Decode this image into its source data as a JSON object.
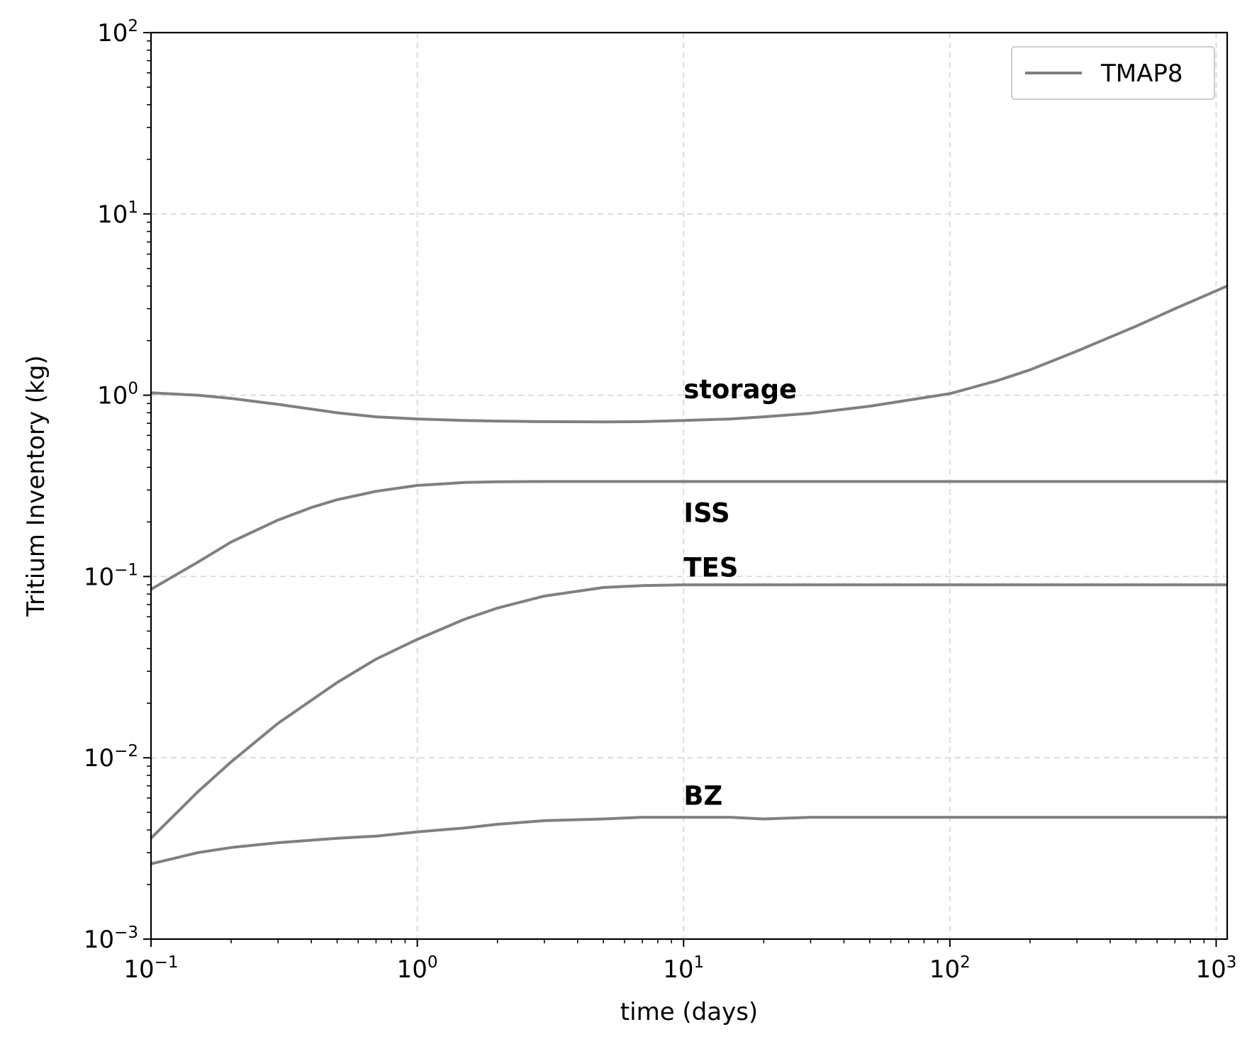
{
  "chart_data": {
    "type": "line",
    "xscale": "log",
    "yscale": "log",
    "xlabel": "time (days)",
    "ylabel": "Tritium Inventory (kg)",
    "xlim": [
      0.1,
      1100
    ],
    "ylim": [
      0.001,
      100
    ],
    "grid": true,
    "legend": {
      "placement": "top-right",
      "entries": [
        "TMAP8"
      ]
    },
    "line_color": "#808080",
    "x_ticks": [
      {
        "value": 0.1,
        "base": "10",
        "exp": "−1"
      },
      {
        "value": 1,
        "base": "10",
        "exp": "0"
      },
      {
        "value": 10,
        "base": "10",
        "exp": "1"
      },
      {
        "value": 100,
        "base": "10",
        "exp": "2"
      },
      {
        "value": 1000,
        "base": "10",
        "exp": "3"
      }
    ],
    "y_ticks": [
      {
        "value": 0.001,
        "base": "10",
        "exp": "−3"
      },
      {
        "value": 0.01,
        "base": "10",
        "exp": "−2"
      },
      {
        "value": 0.1,
        "base": "10",
        "exp": "−1"
      },
      {
        "value": 1,
        "base": "10",
        "exp": "0"
      },
      {
        "value": 10,
        "base": "10",
        "exp": "1"
      },
      {
        "value": 100,
        "base": "10",
        "exp": "2"
      }
    ],
    "series": [
      {
        "name": "TMAP8",
        "label": "storage",
        "label_at": [
          10,
          0.96
        ],
        "x": [
          0.1,
          0.15,
          0.2,
          0.3,
          0.5,
          0.7,
          1,
          1.5,
          2,
          3,
          5,
          7,
          10,
          15,
          20,
          30,
          50,
          70,
          100,
          150,
          200,
          300,
          500,
          700,
          1100
        ],
        "y": [
          1.03,
          1.0,
          0.96,
          0.89,
          0.8,
          0.76,
          0.74,
          0.725,
          0.72,
          0.715,
          0.712,
          0.715,
          0.725,
          0.74,
          0.76,
          0.795,
          0.87,
          0.94,
          1.02,
          1.2,
          1.38,
          1.75,
          2.4,
          3.0,
          4.0
        ]
      },
      {
        "label": "ISS",
        "label_at": [
          10,
          0.2
        ],
        "x": [
          0.1,
          0.15,
          0.2,
          0.3,
          0.4,
          0.5,
          0.7,
          1,
          1.5,
          2,
          3,
          5,
          10,
          20,
          100,
          1100
        ],
        "y": [
          0.085,
          0.12,
          0.155,
          0.205,
          0.24,
          0.265,
          0.295,
          0.318,
          0.33,
          0.333,
          0.334,
          0.334,
          0.334,
          0.334,
          0.334,
          0.334
        ]
      },
      {
        "label": "TES",
        "label_at": [
          10,
          0.1
        ],
        "x": [
          0.1,
          0.15,
          0.2,
          0.3,
          0.5,
          0.7,
          1,
          1.5,
          2,
          3,
          5,
          7,
          10,
          20,
          100,
          1100
        ],
        "y": [
          0.0036,
          0.0065,
          0.0095,
          0.0155,
          0.026,
          0.035,
          0.045,
          0.058,
          0.067,
          0.078,
          0.087,
          0.089,
          0.09,
          0.09,
          0.09,
          0.09
        ]
      },
      {
        "label": "BZ",
        "label_at": [
          10,
          0.0055
        ],
        "x": [
          0.1,
          0.15,
          0.2,
          0.3,
          0.5,
          0.7,
          1,
          1.5,
          2,
          3,
          5,
          7,
          10,
          15,
          20,
          30,
          50,
          100,
          1100
        ],
        "y": [
          0.0026,
          0.003,
          0.0032,
          0.0034,
          0.0036,
          0.0037,
          0.0039,
          0.0041,
          0.0043,
          0.0045,
          0.0046,
          0.0047,
          0.0047,
          0.0047,
          0.0046,
          0.0047,
          0.0047,
          0.0047,
          0.0047
        ]
      }
    ]
  }
}
